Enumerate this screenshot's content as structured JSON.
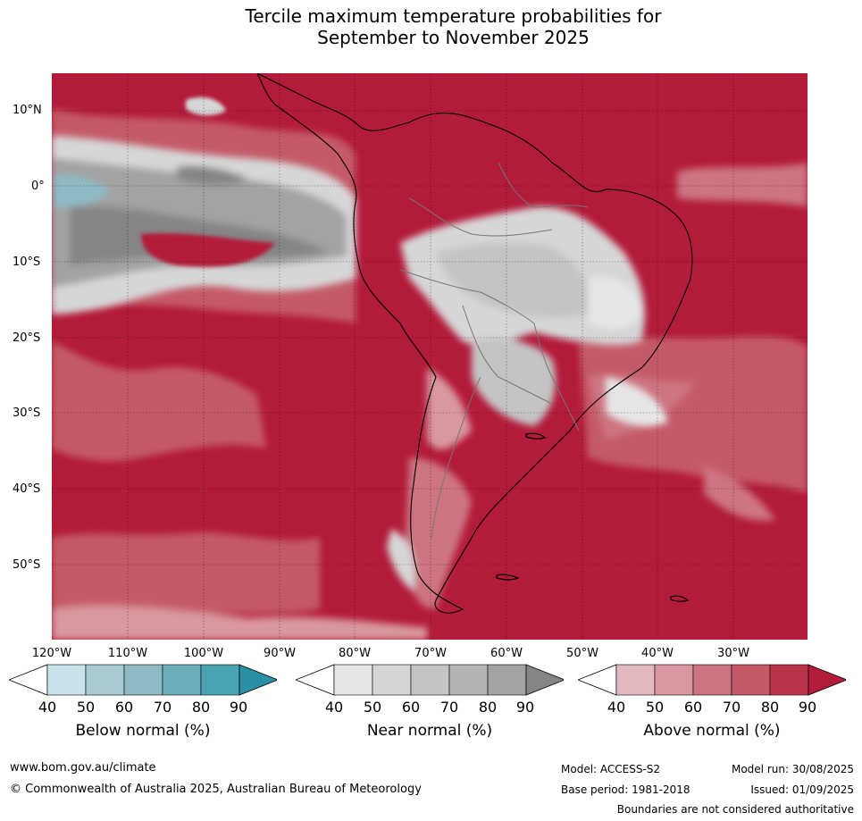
{
  "title": {
    "line1": "Tercile maximum temperature probabilities for",
    "line2": "September to November 2025"
  },
  "map": {
    "lat_labels": [
      "10°N",
      "0°",
      "10°S",
      "20°S",
      "30°S",
      "40°S",
      "50°S"
    ],
    "lon_labels": [
      "120°W",
      "110°W",
      "100°W",
      "90°W",
      "80°W",
      "70°W",
      "60°W",
      "50°W",
      "40°W",
      "30°W"
    ]
  },
  "colorbars": [
    {
      "title": "Below normal (%)",
      "ticks": [
        "40",
        "50",
        "60",
        "70",
        "80",
        "90"
      ],
      "colors": [
        "#ffffff",
        "#c9e2e9",
        "#a9cbd2",
        "#8dbac3",
        "#6eaebb",
        "#4aa3b3",
        "#2b8fa5"
      ]
    },
    {
      "title": "Near normal (%)",
      "ticks": [
        "40",
        "50",
        "60",
        "70",
        "80",
        "90"
      ],
      "colors": [
        "#ffffff",
        "#e6e6e6",
        "#d6d6d6",
        "#c4c4c4",
        "#b4b4b4",
        "#a3a3a3",
        "#858585"
      ]
    },
    {
      "title": "Above normal (%)",
      "ticks": [
        "40",
        "50",
        "60",
        "70",
        "80",
        "90"
      ],
      "colors": [
        "#ffffff",
        "#e3b9bf",
        "#d9979f",
        "#cc7580",
        "#c45a67",
        "#b9344a",
        "#b31b3a"
      ]
    }
  ],
  "footer": {
    "website": "www.bom.gov.au/climate",
    "copyright": "© Commonwealth of Australia 2025, Australian Bureau of Meteorology",
    "model": "Model: ACCESS-S2",
    "model_run": "Model run: 30/08/2025",
    "base_period": "Base period: 1981-2018",
    "issued": "Issued: 01/09/2025",
    "disclaimer": "Boundaries are not considered authoritative"
  }
}
